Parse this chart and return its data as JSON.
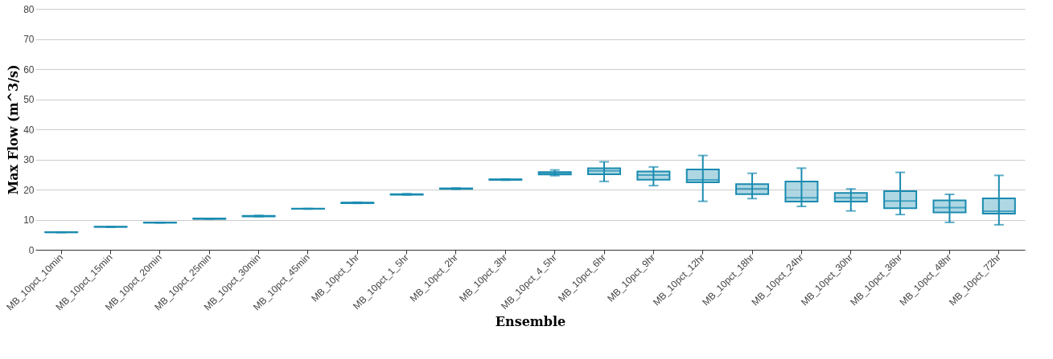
{
  "chart_data": {
    "type": "box",
    "xlabel": "Ensemble",
    "ylabel": "Max Flow (m^3/s)",
    "categories": [
      "MB_10pct_10min",
      "MB_10pct_15min",
      "MB_10pct_20min",
      "MB_10pct_25min",
      "MB_10pct_30min",
      "MB_10pct_45min",
      "MB_10pct_1hr",
      "MB_10pct_1_5hr",
      "MB_10pct_2hr",
      "MB_10pct_3hr",
      "MB_10pct_4_5hr",
      "MB_10pct_6hr",
      "MB_10pct_9hr",
      "MB_10pct_12hr",
      "MB_10pct_18hr",
      "MB_10pct_24hr",
      "MB_10pct_30hr",
      "MB_10pct_36hr",
      "MB_10pct_48hr",
      "MB_10pct_72hr"
    ],
    "series": [
      {
        "color": "#1a8bb0",
        "boxes": [
          {
            "low": 5.7,
            "q1": 5.8,
            "median": 5.8,
            "q3": 5.9,
            "high": 5.9
          },
          {
            "low": 7.5,
            "q1": 7.6,
            "median": 7.6,
            "q3": 7.7,
            "high": 7.7
          },
          {
            "low": 8.9,
            "q1": 9.0,
            "median": 9.0,
            "q3": 9.1,
            "high": 9.1
          },
          {
            "low": 10.2,
            "q1": 10.3,
            "median": 10.3,
            "q3": 10.4,
            "high": 10.4
          },
          {
            "low": 11.0,
            "q1": 11.1,
            "median": 11.2,
            "q3": 11.3,
            "high": 11.4
          },
          {
            "low": 13.5,
            "q1": 13.6,
            "median": 13.6,
            "q3": 13.7,
            "high": 13.7
          },
          {
            "low": 15.4,
            "q1": 15.5,
            "median": 15.6,
            "q3": 15.7,
            "high": 15.8
          },
          {
            "low": 18.2,
            "q1": 18.3,
            "median": 18.4,
            "q3": 18.5,
            "high": 18.6
          },
          {
            "low": 20.1,
            "q1": 20.2,
            "median": 20.3,
            "q3": 20.4,
            "high": 20.5
          },
          {
            "low": 23.1,
            "q1": 23.2,
            "median": 23.3,
            "q3": 23.4,
            "high": 23.5
          },
          {
            "low": 24.6,
            "q1": 25.0,
            "median": 25.4,
            "q3": 25.8,
            "high": 26.5
          },
          {
            "low": 22.7,
            "q1": 25.1,
            "median": 26.2,
            "q3": 27.1,
            "high": 29.2
          },
          {
            "low": 21.3,
            "q1": 23.3,
            "median": 24.8,
            "q3": 26.0,
            "high": 27.5
          },
          {
            "low": 16.1,
            "q1": 22.4,
            "median": 23.2,
            "q3": 26.7,
            "high": 31.3
          },
          {
            "low": 17.0,
            "q1": 18.5,
            "median": 20.3,
            "q3": 21.8,
            "high": 25.4
          },
          {
            "low": 14.4,
            "q1": 16.0,
            "median": 17.3,
            "q3": 22.7,
            "high": 27.1
          },
          {
            "low": 12.9,
            "q1": 16.0,
            "median": 17.3,
            "q3": 18.9,
            "high": 20.2
          },
          {
            "low": 11.7,
            "q1": 13.8,
            "median": 16.2,
            "q3": 19.5,
            "high": 25.7
          },
          {
            "low": 9.1,
            "q1": 12.4,
            "median": 14.0,
            "q3": 16.4,
            "high": 18.4
          },
          {
            "low": 8.3,
            "q1": 12.0,
            "median": 12.8,
            "q3": 17.1,
            "high": 24.7
          }
        ]
      }
    ],
    "ylim": [
      0,
      80
    ],
    "yticks": [
      0,
      10,
      20,
      30,
      40,
      50,
      60,
      70,
      80
    ],
    "grid": "y"
  }
}
